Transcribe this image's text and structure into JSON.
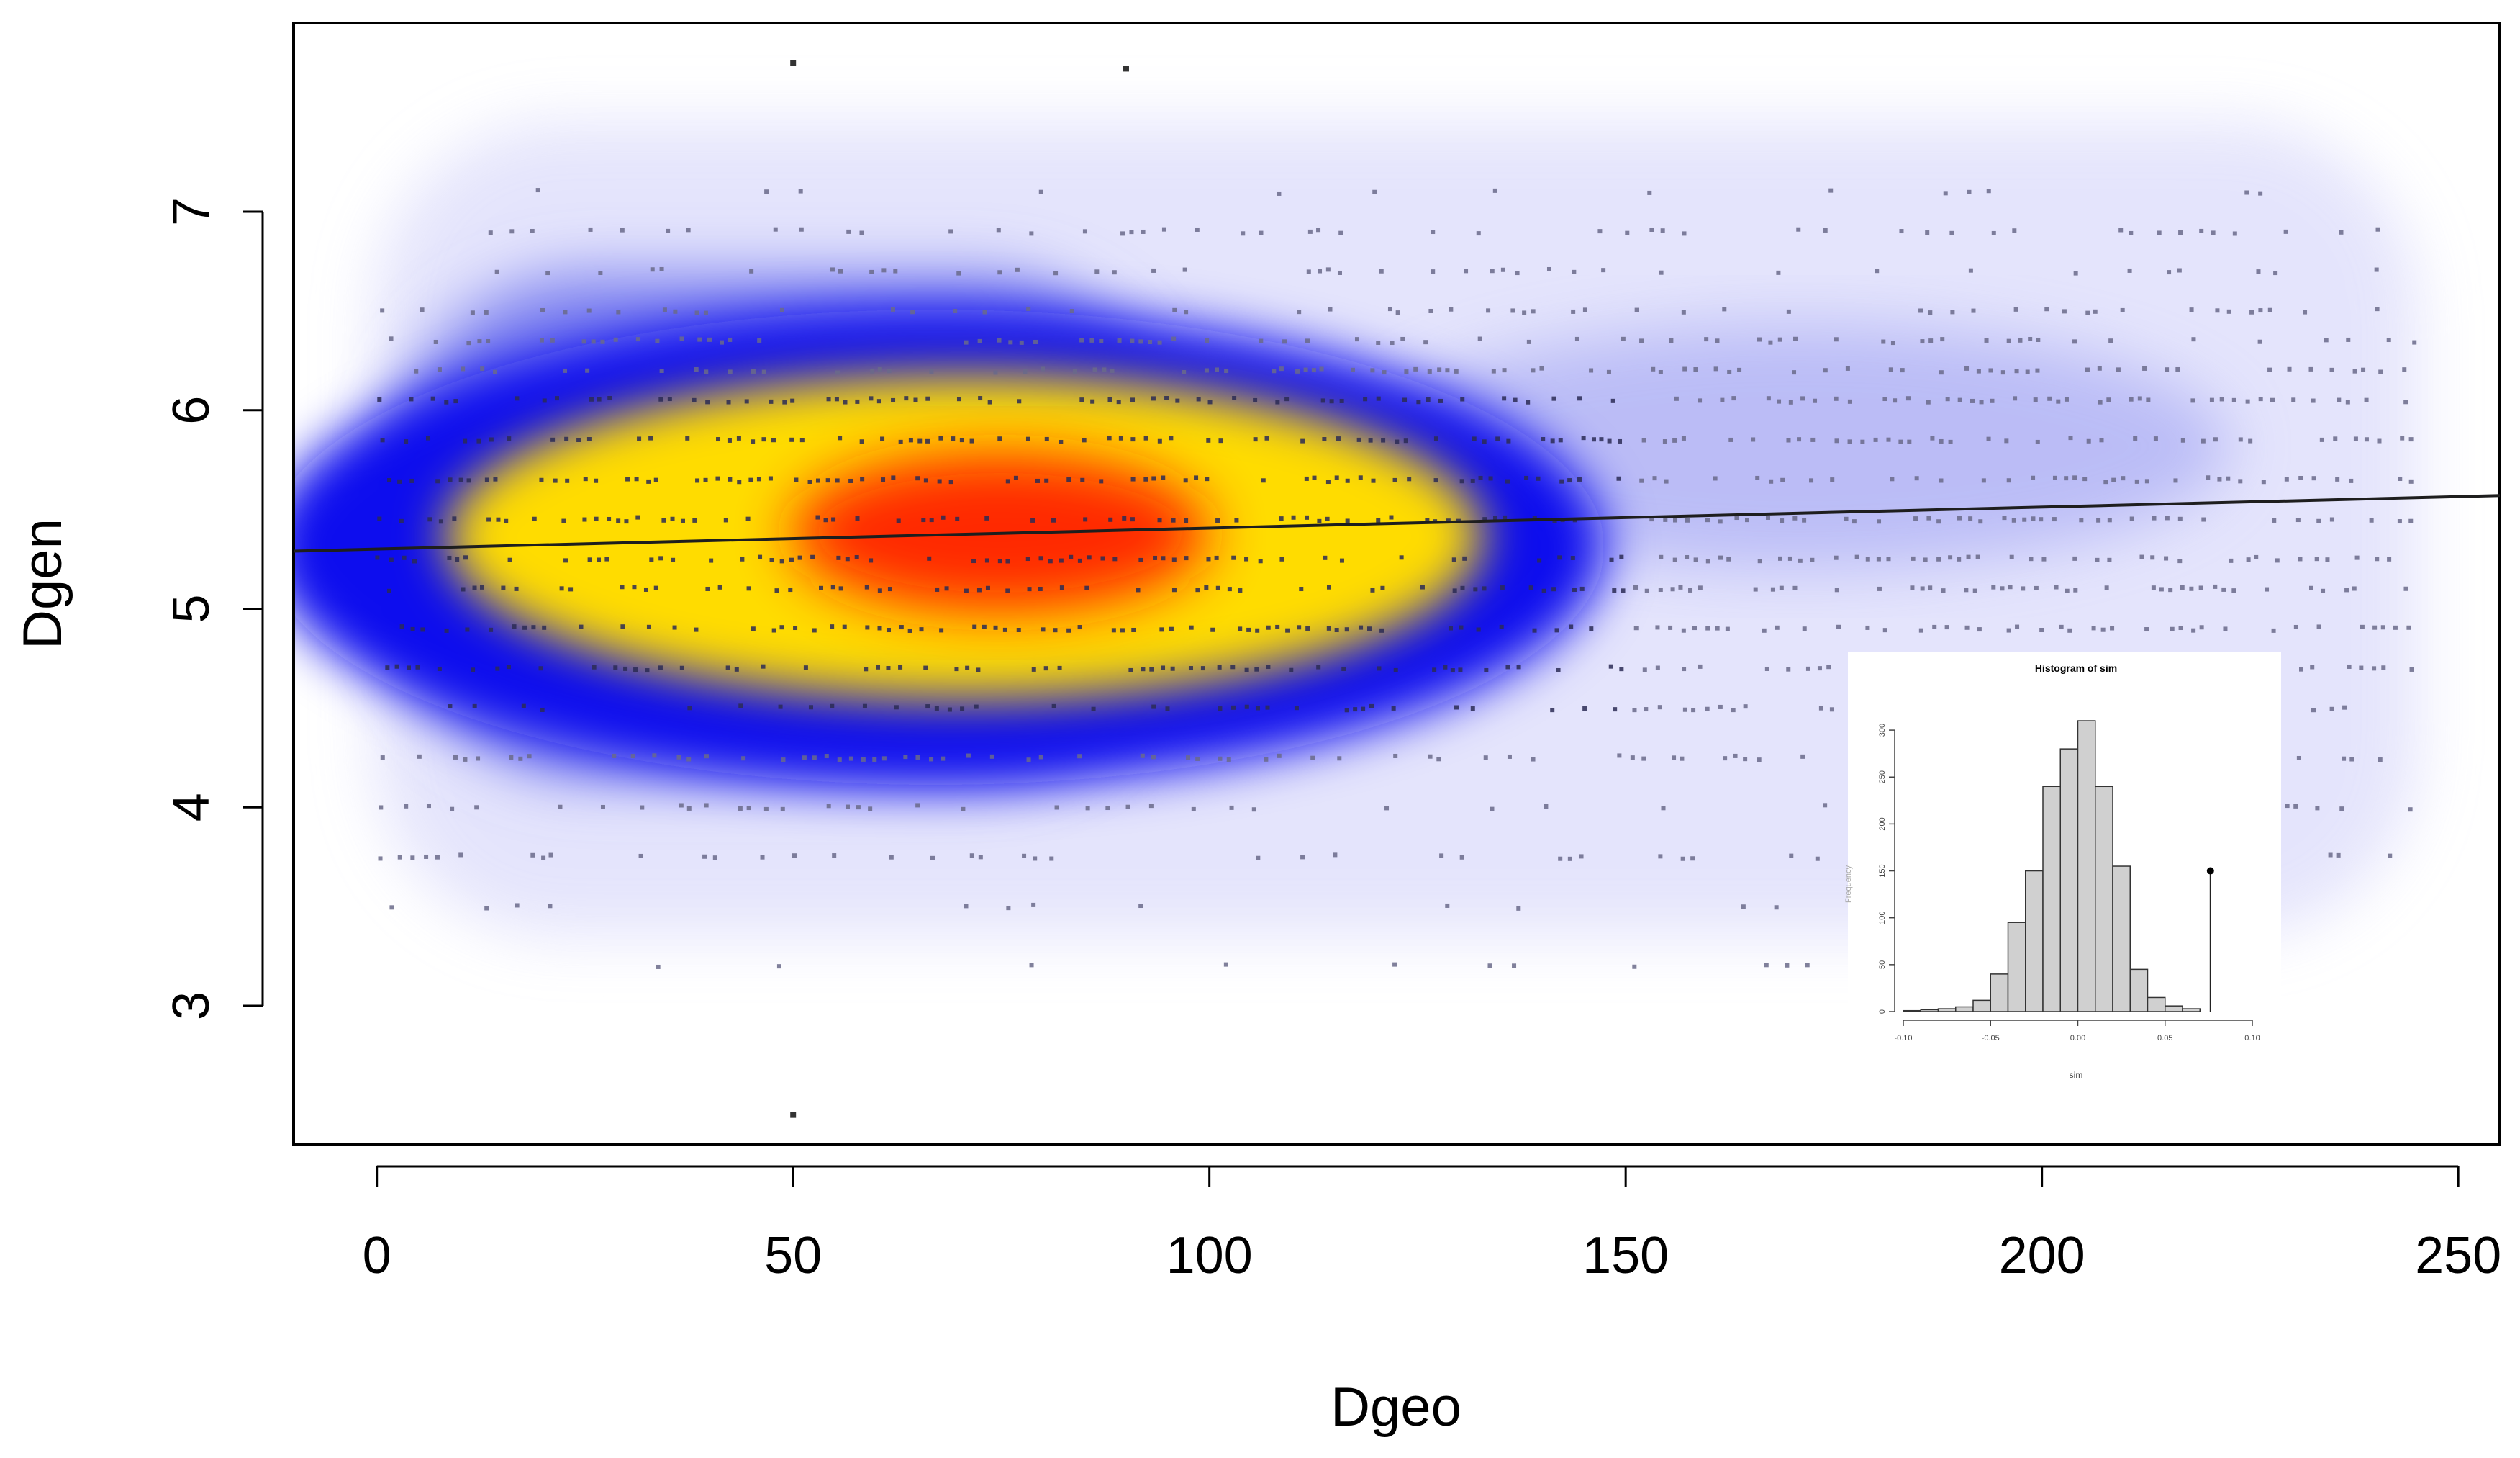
{
  "chart_data": [
    {
      "type": "scatter",
      "title": "",
      "xlabel": "Dgeo",
      "ylabel": "Dgen",
      "xlim": [
        -10,
        255
      ],
      "ylim": [
        2.3,
        7.95
      ],
      "x_ticks": [
        0,
        50,
        100,
        150,
        200,
        250
      ],
      "y_ticks": [
        3,
        4,
        5,
        6,
        7
      ],
      "density_overlay": {
        "colors": [
          "#ffffff",
          "#0000ff",
          "#ffff00",
          "#ff0000"
        ],
        "peak": {
          "x": 72,
          "y": 5.35
        }
      },
      "point_levels_y": [
        3.2,
        3.5,
        3.75,
        4.0,
        4.25,
        4.5,
        4.7,
        4.9,
        5.1,
        5.25,
        5.45,
        5.65,
        5.85,
        6.05,
        6.2,
        6.35,
        6.5,
        6.7,
        6.9,
        7.1
      ],
      "point_x_extent": [
        0,
        245
      ],
      "outlier_points": [
        {
          "x": 50,
          "y": 2.45
        },
        {
          "x": 50,
          "y": 7.75
        },
        {
          "x": 90,
          "y": 7.72
        }
      ],
      "regression_line": {
        "x": [
          -10,
          255
        ],
        "y": [
          5.29,
          5.57
        ]
      }
    },
    {
      "type": "bar",
      "title": "Histogram of sim",
      "xlabel": "sim",
      "ylabel": "Frequency",
      "bin_edges": [
        -0.1,
        -0.09,
        -0.08,
        -0.07,
        -0.06,
        -0.05,
        -0.04,
        -0.03,
        -0.02,
        -0.01,
        0.0,
        0.01,
        0.02,
        0.03,
        0.04,
        0.05,
        0.06,
        0.07
      ],
      "values": [
        1,
        2,
        3,
        5,
        12,
        40,
        95,
        150,
        240,
        280,
        310,
        240,
        155,
        45,
        15,
        6,
        3
      ],
      "xlim": [
        -0.1,
        0.1
      ],
      "ylim": [
        0,
        330
      ],
      "x_ticks": [
        "-0.10",
        "-0.05",
        "0.00",
        "0.05",
        "0.10"
      ],
      "y_ticks": [
        "0",
        "50",
        "100",
        "150",
        "200",
        "250",
        "300"
      ],
      "observed": {
        "x": 0.076,
        "y": 150
      }
    }
  ]
}
